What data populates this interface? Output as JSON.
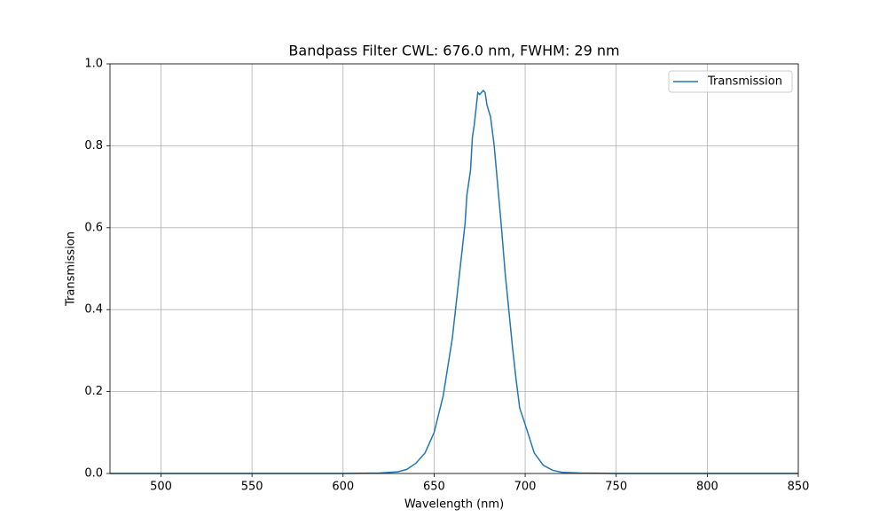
{
  "chart_data": {
    "type": "line",
    "title": "Bandpass Filter CWL: 676.0 nm, FWHM: 29 nm",
    "xlabel": "Wavelength (nm)",
    "ylabel": "Transmission",
    "x": [
      472,
      600,
      620,
      630,
      635,
      640,
      645,
      650,
      655,
      660,
      663,
      665,
      667,
      668,
      670,
      671,
      672,
      674,
      675,
      676,
      677,
      678,
      679,
      681,
      683,
      685,
      687,
      689,
      691,
      693,
      695,
      697,
      700,
      705,
      710,
      715,
      720,
      730,
      750,
      850
    ],
    "series": [
      {
        "name": "Transmission",
        "color": "#1f77b4",
        "values": [
          0,
          0,
          0.001,
          0.004,
          0.01,
          0.025,
          0.05,
          0.1,
          0.19,
          0.33,
          0.45,
          0.53,
          0.61,
          0.68,
          0.74,
          0.82,
          0.85,
          0.93,
          0.925,
          0.93,
          0.935,
          0.93,
          0.9,
          0.87,
          0.8,
          0.7,
          0.6,
          0.49,
          0.4,
          0.31,
          0.23,
          0.16,
          0.12,
          0.05,
          0.02,
          0.008,
          0.003,
          0.001,
          0,
          0
        ]
      }
    ],
    "xlim": [
      472,
      850
    ],
    "ylim": [
      0,
      1
    ],
    "xticks": [
      500,
      550,
      600,
      650,
      700,
      750,
      800,
      850
    ],
    "yticks": [
      {
        "value": 0,
        "label": "0.0"
      },
      0.2,
      0.4,
      0.6,
      0.8,
      {
        "value": 1,
        "label": "1.0"
      }
    ],
    "grid": true,
    "legend": "upper right"
  }
}
